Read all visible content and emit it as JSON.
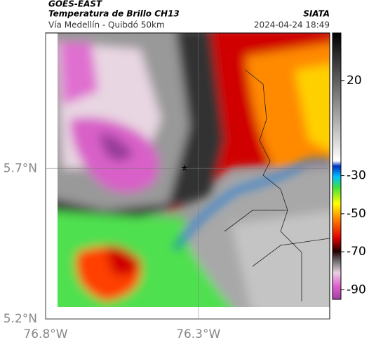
{
  "header": {
    "source": "GOES-EAST",
    "product": "Temperatura de Brillo CH13",
    "place": "Vía Medellín - Quibdó 50km",
    "agency": "SIATA",
    "datetime": "2024-04-24 18:49"
  },
  "map": {
    "xlim": [
      -76.8,
      -75.87
    ],
    "ylim": [
      5.2,
      6.15
    ],
    "xticks": [
      {
        "value": -76.8,
        "label": "76.8°W"
      },
      {
        "value": -76.3,
        "label": "76.3°W"
      }
    ],
    "yticks": [
      {
        "value": 5.2,
        "label": "5.2°N"
      },
      {
        "value": 5.7,
        "label": "5.7°N"
      }
    ]
  },
  "colorbar": {
    "lim": [
      -95,
      45
    ],
    "ticks": [
      20,
      -30,
      -50,
      -70,
      -90
    ]
  }
}
